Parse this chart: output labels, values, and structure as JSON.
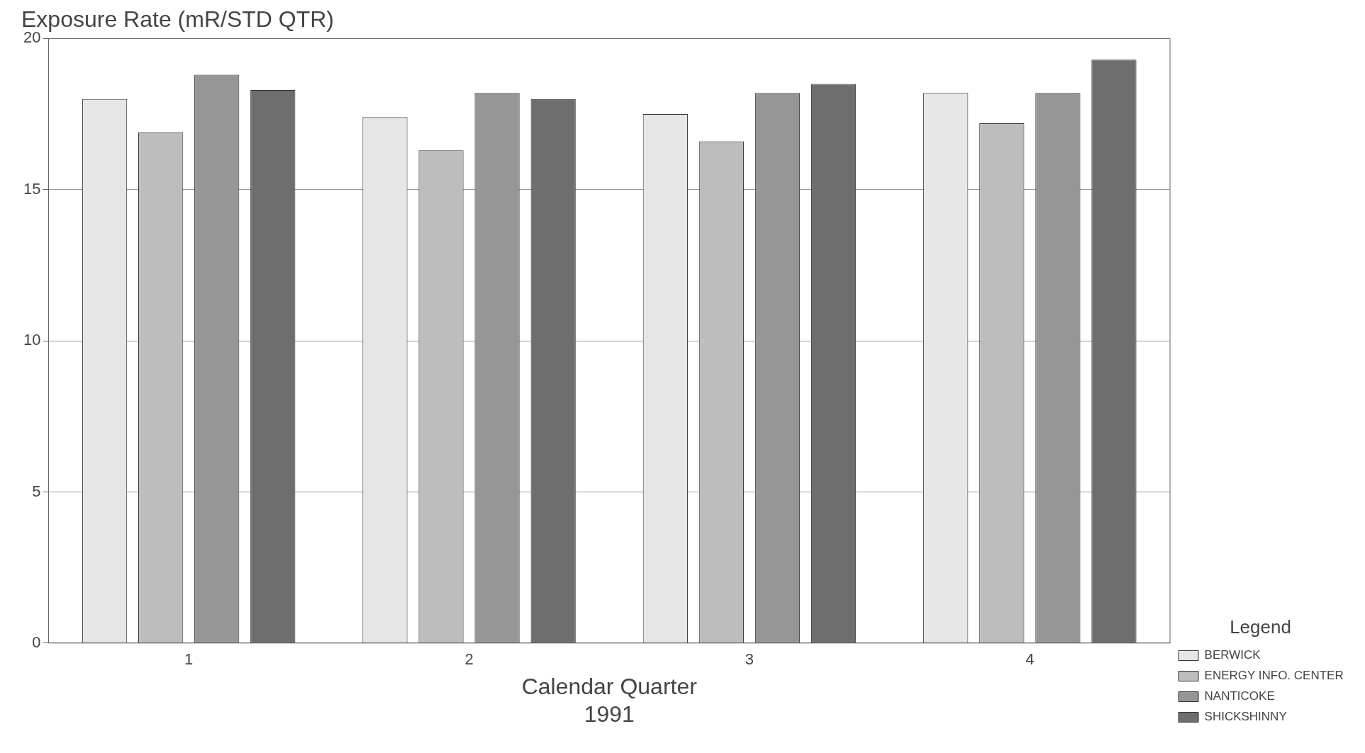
{
  "chart_data": {
    "type": "bar",
    "ylabel": "Exposure Rate (mR/STD QTR)",
    "xlabel": "Calendar Quarter\n1991",
    "legend_title": "Legend",
    "categories": [
      "1",
      "2",
      "3",
      "4"
    ],
    "series": [
      {
        "name": "BERWICK",
        "color": "#e6e6e6",
        "values": [
          18.0,
          17.4,
          17.5,
          18.2
        ]
      },
      {
        "name": "ENERGY INFO. CENTER",
        "color": "#bdbdbd",
        "values": [
          16.9,
          16.3,
          16.6,
          17.2
        ]
      },
      {
        "name": "NANTICOKE",
        "color": "#969696",
        "values": [
          18.8,
          18.2,
          18.2,
          18.2
        ]
      },
      {
        "name": "SHICKSHINNY",
        "color": "#6e6e6e",
        "values": [
          18.3,
          18.0,
          18.5,
          19.3
        ]
      }
    ],
    "ylim": [
      0,
      20
    ],
    "yticks": [
      0,
      5,
      10,
      15,
      20
    ],
    "grid": "y",
    "legend": "bottom right"
  }
}
